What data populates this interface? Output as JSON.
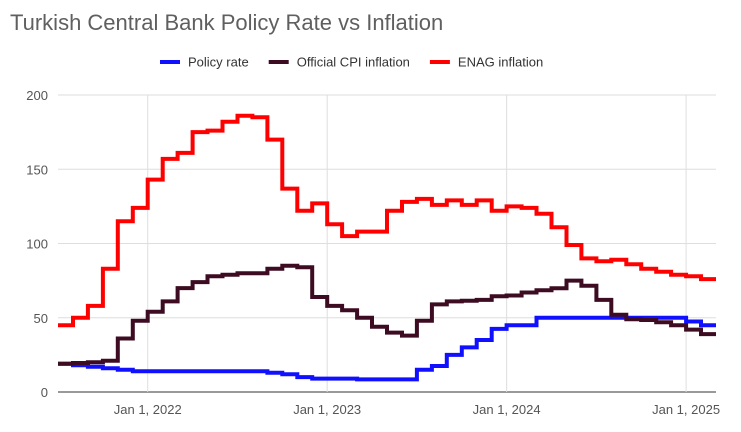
{
  "chart_data": {
    "type": "line",
    "title": "Turkish Central Bank Policy Rate vs Inflation",
    "legend_position": "top",
    "grid": true,
    "ylim": [
      0,
      200
    ],
    "yticks": [
      0,
      50,
      100,
      150,
      200
    ],
    "xticks": [
      {
        "date": "2022-01-01",
        "label": "Jan 1, 2022"
      },
      {
        "date": "2023-01-01",
        "label": "Jan 1, 2023"
      },
      {
        "date": "2024-01-01",
        "label": "Jan 1, 2024"
      },
      {
        "date": "2025-01-01",
        "label": "Jan 1, 2025"
      }
    ],
    "xrange": [
      "2021-07-01",
      "2025-03-01"
    ],
    "step": true,
    "x": [
      "2021-07",
      "2021-08",
      "2021-09",
      "2021-10",
      "2021-11",
      "2021-12",
      "2022-01",
      "2022-02",
      "2022-03",
      "2022-04",
      "2022-05",
      "2022-06",
      "2022-07",
      "2022-08",
      "2022-09",
      "2022-10",
      "2022-11",
      "2022-12",
      "2023-01",
      "2023-02",
      "2023-03",
      "2023-04",
      "2023-05",
      "2023-06",
      "2023-07",
      "2023-08",
      "2023-09",
      "2023-10",
      "2023-11",
      "2023-12",
      "2024-01",
      "2024-02",
      "2024-03",
      "2024-04",
      "2024-05",
      "2024-06",
      "2024-07",
      "2024-08",
      "2024-09",
      "2024-10",
      "2024-11",
      "2024-12",
      "2025-01",
      "2025-02"
    ],
    "series": [
      {
        "name": "Policy rate",
        "color": "#1010ff",
        "values": [
          19,
          18,
          17,
          16,
          15,
          14,
          14,
          14,
          14,
          14,
          14,
          14,
          14,
          14,
          13,
          12,
          10,
          9,
          9,
          9,
          8.5,
          8.5,
          8.5,
          8.5,
          15,
          17.5,
          25,
          30,
          35,
          42.5,
          45,
          45,
          50,
          50,
          50,
          50,
          50,
          50,
          50,
          50,
          50,
          50,
          47.5,
          45
        ]
      },
      {
        "name": "Official CPI inflation",
        "color": "#3d0c22",
        "values": [
          19,
          19.5,
          20,
          21,
          36,
          48,
          54,
          61,
          70,
          74,
          78,
          79,
          80,
          80,
          83,
          85,
          84,
          64,
          58,
          55,
          50,
          44,
          40,
          38,
          48,
          59,
          61,
          61.5,
          62,
          64.5,
          65,
          67,
          68.5,
          69.8,
          75,
          71.5,
          62,
          52,
          49,
          48.5,
          47,
          45,
          42,
          39
        ]
      },
      {
        "name": "ENAG inflation",
        "color": "#ff0000",
        "values": [
          45,
          50,
          58,
          83,
          115,
          124,
          143,
          157,
          161,
          175,
          176,
          182,
          186,
          185,
          170,
          137,
          122,
          127,
          113,
          105,
          108,
          108,
          122,
          128,
          130,
          126,
          129,
          126,
          129,
          122,
          125,
          124,
          120,
          111,
          99,
          90,
          88,
          89,
          86,
          83,
          81,
          79,
          78,
          76
        ]
      }
    ]
  }
}
